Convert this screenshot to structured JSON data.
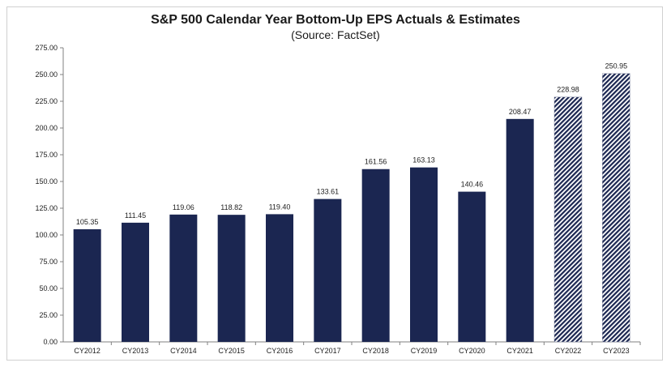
{
  "title": "S&P 500 Calendar Year Bottom-Up EPS Actuals & Estimates",
  "subtitle": "(Source: FactSet)",
  "colors": {
    "actual": "#1b2651",
    "estimate_stripe": "#1b2651",
    "axis": "#808080"
  },
  "chart_data": {
    "type": "bar",
    "categories": [
      "CY2012",
      "CY2013",
      "CY2014",
      "CY2015",
      "CY2016",
      "CY2017",
      "CY2018",
      "CY2019",
      "CY2020",
      "CY2021",
      "CY2022",
      "CY2023"
    ],
    "values": [
      105.35,
      111.45,
      119.06,
      118.82,
      119.4,
      133.61,
      161.56,
      163.13,
      140.46,
      208.47,
      228.98,
      250.95
    ],
    "labels": [
      "105.35",
      "111.45",
      "119.06",
      "118.82",
      "119.40",
      "133.61",
      "161.56",
      "163.13",
      "140.46",
      "208.47",
      "228.98",
      "250.95"
    ],
    "estimate": [
      false,
      false,
      false,
      false,
      false,
      false,
      false,
      false,
      false,
      false,
      true,
      true
    ],
    "yticks": [
      "0.00",
      "25.00",
      "50.00",
      "75.00",
      "100.00",
      "125.00",
      "150.00",
      "175.00",
      "200.00",
      "225.00",
      "250.00",
      "275.00"
    ],
    "ylim": [
      0,
      275
    ],
    "title": "S&P 500 Calendar Year Bottom-Up EPS Actuals & Estimates",
    "xlabel": "",
    "ylabel": "",
    "grid": false
  }
}
